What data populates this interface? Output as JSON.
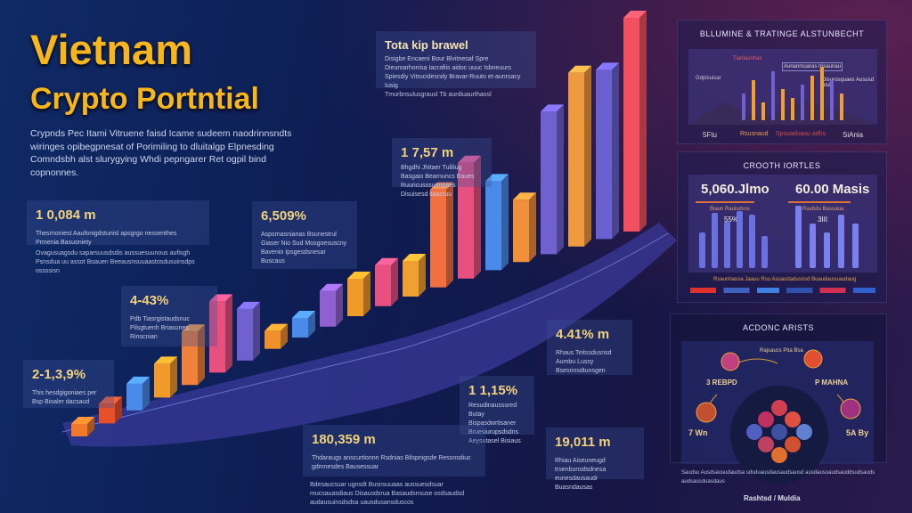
{
  "header": {
    "title": "Vietnam",
    "subtitle": "Crypto Portntial",
    "intro": "Crypnds Pec Itami Vitruene faisd Icame sudeem naodrinnsndts wiringes opibegpnesat of Porimiling to dluitalgp Elpnesding Comndsbh alst slurygying Whdi pepngarer Ret ogpil bind copnonnes."
  },
  "cards": [
    {
      "value": "1 0,084 m",
      "text": "Thesrnoniest Aaufonigdstunisl apsgrgo nessenthes Prmenia Basuoniety"
    },
    {
      "value": "6,509%",
      "text": "Aspsrnasnianas Bsunestrul Giaser Nio Sud Mosgoesuscny Bavenio Ipsgesdsnesar Buscaus"
    },
    {
      "value": "4-43%",
      "text": "Pdb Tiasrgistaudsnuc Pilsgtuenh Briasunes Rinscnian"
    },
    {
      "value": "2-1,3,9%",
      "text": "This hesdgigoniaes per Bsp Bioaler dacsaud"
    },
    {
      "value": "Tota kip brawel",
      "text": "Disigbe Encaeni Bour Blvitnesaf Spre Dieuroarhonisa Iacrafiis aidoc uuuc Isbneuurs Spiesdiy Vitrucidesndy Bravar-Ruuto et-aunrsacy Iusig"
    },
    {
      "value": "1 7,57 m",
      "text": "Bhgdhi Jhitaer Tuliliug Basgaio Bearnuncs Baues Ruuncusssuonpaes Disuisesd itaacruu"
    },
    {
      "value": "4.41% m",
      "text": "Rhaus Teitssdusnsd Aumbu Lussy Bsesrinsdtunsgen"
    },
    {
      "value": "1 1,15%",
      "text": "Resudinausssred Butay Bispasdwrtisaner Bruesiurupsdsdns Aeysutasel Bisiaus"
    },
    {
      "value": "180,359 m",
      "text": "Thdaraugs anscurtionnn Rsdnias Bilspnigsde Ressnsdiuc gdmnesdes Bausessuar"
    },
    {
      "value": "19,011 m",
      "text": "Rhiau Aiseuneugd trsenbunsdsdnesa eunesdausaudr Buasndausas"
    }
  ],
  "notes": {
    "left": "Ovagusuagsdu saparsuusdsdis aussuesuunous aufisgh Psnsdua uu assot Boauen Beeausnsuuaastosdusuinsdps ossssisn",
    "top": "Tmurbnsulusgrausl Tb aurdiuaurthaosl",
    "bottom": "Bdesaucsuar ugnsdt Busnsuuaas aussuesdsuar mucsauasdiaus Disausdsrua Basaudsnsuse osdsaudsd audausuinsdsdsa uausdusansduscos"
  },
  "bars": [
    {
      "h": 14,
      "color": "#f07a2a"
    },
    {
      "h": 22,
      "color": "#e8502a"
    },
    {
      "h": 30,
      "color": "#4a8ae8"
    },
    {
      "h": 38,
      "color": "#f09a2a"
    },
    {
      "h": 60,
      "color": "#f0803a"
    },
    {
      "h": 80,
      "color": "#e85080"
    },
    {
      "h": 58,
      "color": "#7060d0"
    },
    {
      "h": 20,
      "color": "#f0902a"
    },
    {
      "h": 22,
      "color": "#4a8ae8"
    },
    {
      "h": 40,
      "color": "#9060d0"
    },
    {
      "h": 42,
      "color": "#f09a2a"
    },
    {
      "h": 46,
      "color": "#e85080"
    },
    {
      "h": 40,
      "color": "#f0a030"
    },
    {
      "h": 110,
      "color": "#f07040"
    },
    {
      "h": 130,
      "color": "#e85080"
    },
    {
      "h": 100,
      "color": "#4a8ae8"
    },
    {
      "h": 70,
      "color": "#f0903a"
    },
    {
      "h": 160,
      "color": "#7060d0"
    },
    {
      "h": 195,
      "color": "#f09a40"
    },
    {
      "h": 190,
      "color": "#6a60d0"
    },
    {
      "h": 240,
      "color": "#f05060"
    }
  ],
  "panels": {
    "top": {
      "title": "BLLUMINE & TRATINGE ALSTUNBECHT",
      "labels": [
        "Gdpisuisar",
        "Tianiaunhas",
        "Aunanrsuaras rrisaunau",
        "Disurosquaes Aususd usda"
      ],
      "footer": [
        "5Ftu",
        "Rsusnaud",
        "Spsuaduasu adhs",
        "SiAnia"
      ]
    },
    "mid": {
      "title": "CROOTH IORTLES",
      "stat1": "5,060.Jlmo",
      "stat1_sub": "Biaun Rauisdsss",
      "stat2": "60.00 Masis",
      "stat2_sub": "Raubdu Basuaua",
      "pct1": "55%",
      "pct2": "3III",
      "bars1": [
        40,
        62,
        52,
        64,
        60,
        36
      ],
      "bars2": [
        70,
        50,
        40,
        60,
        50
      ],
      "footer": "Rsaunhausa Jaauu Rsu Asuaudadusnsd Buaudausuaudaug"
    },
    "bottom": {
      "title": "ACDONC ARISTS",
      "center": "Rajsaucs Pita Bsa",
      "left_mid": "3 REBPD",
      "right_mid": "P MAHNA",
      "left_low": "7 Wn",
      "right_low": "5A By",
      "footer": "Saudsu Ausdsausudaudsa sdsduausdausaudsausd ausdausuaudsauddsudsauds audsausduasdaus",
      "brand": "Rashtsd / Muldia"
    }
  },
  "colors": {
    "accent": "#f7b51e",
    "bg": "#0e1c52"
  }
}
